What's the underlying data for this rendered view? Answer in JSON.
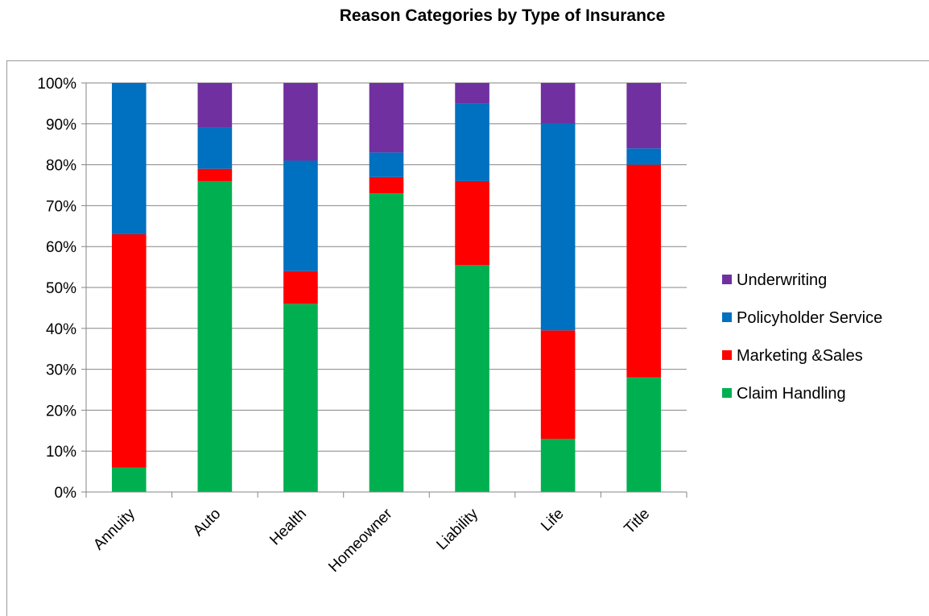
{
  "chart_data": {
    "type": "bar",
    "stacked": true,
    "percent_stacked": true,
    "title": "Reason Categories by Type of Insurance",
    "xlabel": "",
    "ylabel": "",
    "categories": [
      "Annuity",
      "Auto",
      "Health",
      "Homeowner",
      "Liability",
      "Life",
      "Title"
    ],
    "ylim": [
      0,
      100
    ],
    "yticks": [
      "0%",
      "10%",
      "20%",
      "30%",
      "40%",
      "50%",
      "60%",
      "70%",
      "80%",
      "90%",
      "100%"
    ],
    "grid": true,
    "legend_position": "right",
    "series": [
      {
        "name": "Claim Handling",
        "color": "#00b050",
        "values": [
          6,
          76,
          46,
          73,
          55.5,
          13,
          28
        ]
      },
      {
        "name": "Marketing &Sales",
        "color": "#ff0000",
        "values": [
          57,
          3,
          8,
          4,
          20.5,
          26.5,
          52
        ]
      },
      {
        "name": "Policyholder Service",
        "color": "#0070c0",
        "values": [
          37,
          10,
          27,
          6,
          19,
          50.5,
          4
        ]
      },
      {
        "name": "Underwriting",
        "color": "#7030a0",
        "values": [
          0,
          11,
          19,
          17,
          5,
          10,
          16
        ]
      }
    ]
  }
}
